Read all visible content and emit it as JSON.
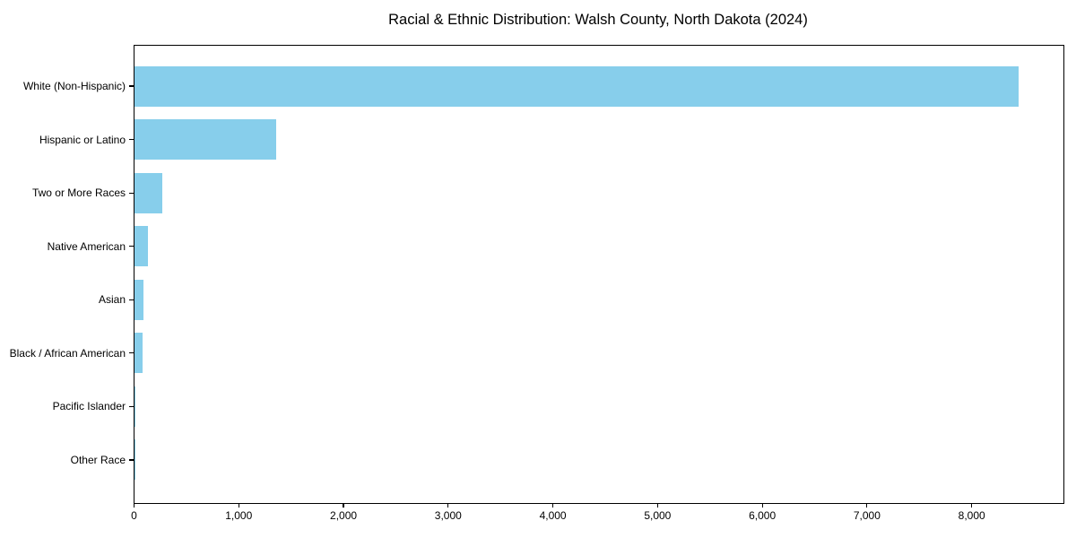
{
  "title": "Racial & Ethnic Distribution: Walsh County, North Dakota (2024)",
  "chart_data": {
    "type": "bar",
    "orientation": "horizontal",
    "title": "Racial & Ethnic Distribution: Walsh County, North Dakota (2024)",
    "categories": [
      "White (Non-Hispanic)",
      "Hispanic or Latino",
      "Two or More Races",
      "Native American",
      "Asian",
      "Black / African American",
      "Pacific Islander",
      "Other Race"
    ],
    "values": [
      8450,
      1360,
      270,
      130,
      90,
      85,
      5,
      2
    ],
    "xlabel": "",
    "ylabel": "",
    "xlim": [
      0,
      8872
    ],
    "x_ticks": [
      0,
      1000,
      2000,
      3000,
      4000,
      5000,
      6000,
      7000,
      8000
    ],
    "x_tick_labels": [
      "0",
      "1,000",
      "2,000",
      "3,000",
      "4,000",
      "5,000",
      "6,000",
      "7,000",
      "8,000"
    ],
    "bar_color": "#87CEEB",
    "axis_color": "#000000",
    "background": "#ffffff",
    "grid": false,
    "legend": null
  }
}
